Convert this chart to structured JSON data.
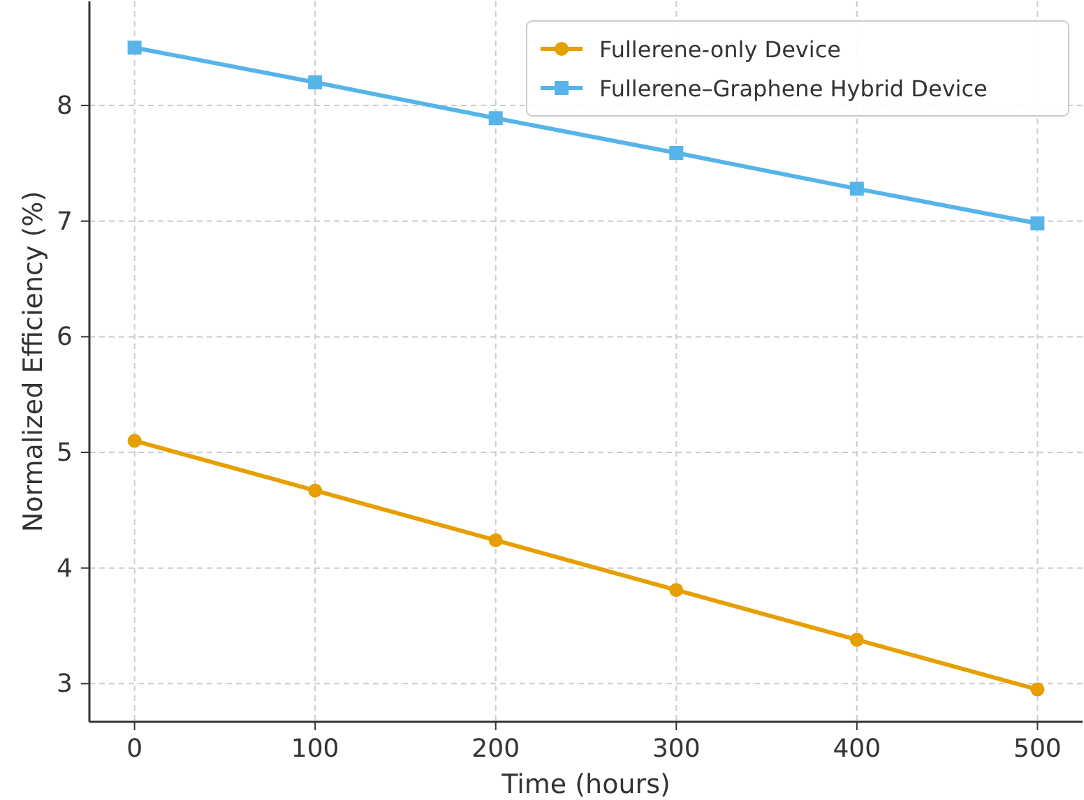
{
  "chart_data": {
    "type": "line",
    "xlabel": "Time (hours)",
    "ylabel": "Normalized Efficiency (%)",
    "x": [
      0,
      100,
      200,
      300,
      400,
      500
    ],
    "series": [
      {
        "name": "Fullerene-only Device",
        "color": "#e69f00",
        "marker": "circle",
        "values": [
          5.1,
          4.67,
          4.24,
          3.81,
          3.38,
          2.95
        ]
      },
      {
        "name": "Fullerene–Graphene Hybrid Device",
        "color": "#56b4e9",
        "marker": "square",
        "values": [
          8.5,
          8.2,
          7.89,
          7.59,
          7.28,
          6.98
        ]
      }
    ],
    "xlim": [
      -25,
      525
    ],
    "xticks": [
      0,
      100,
      200,
      300,
      400,
      500
    ],
    "ylim": [
      2.67,
      8.9
    ],
    "yticks": [
      3,
      4,
      5,
      6,
      7,
      8
    ],
    "grid": true,
    "legend": "top right",
    "line_style": "solid"
  }
}
